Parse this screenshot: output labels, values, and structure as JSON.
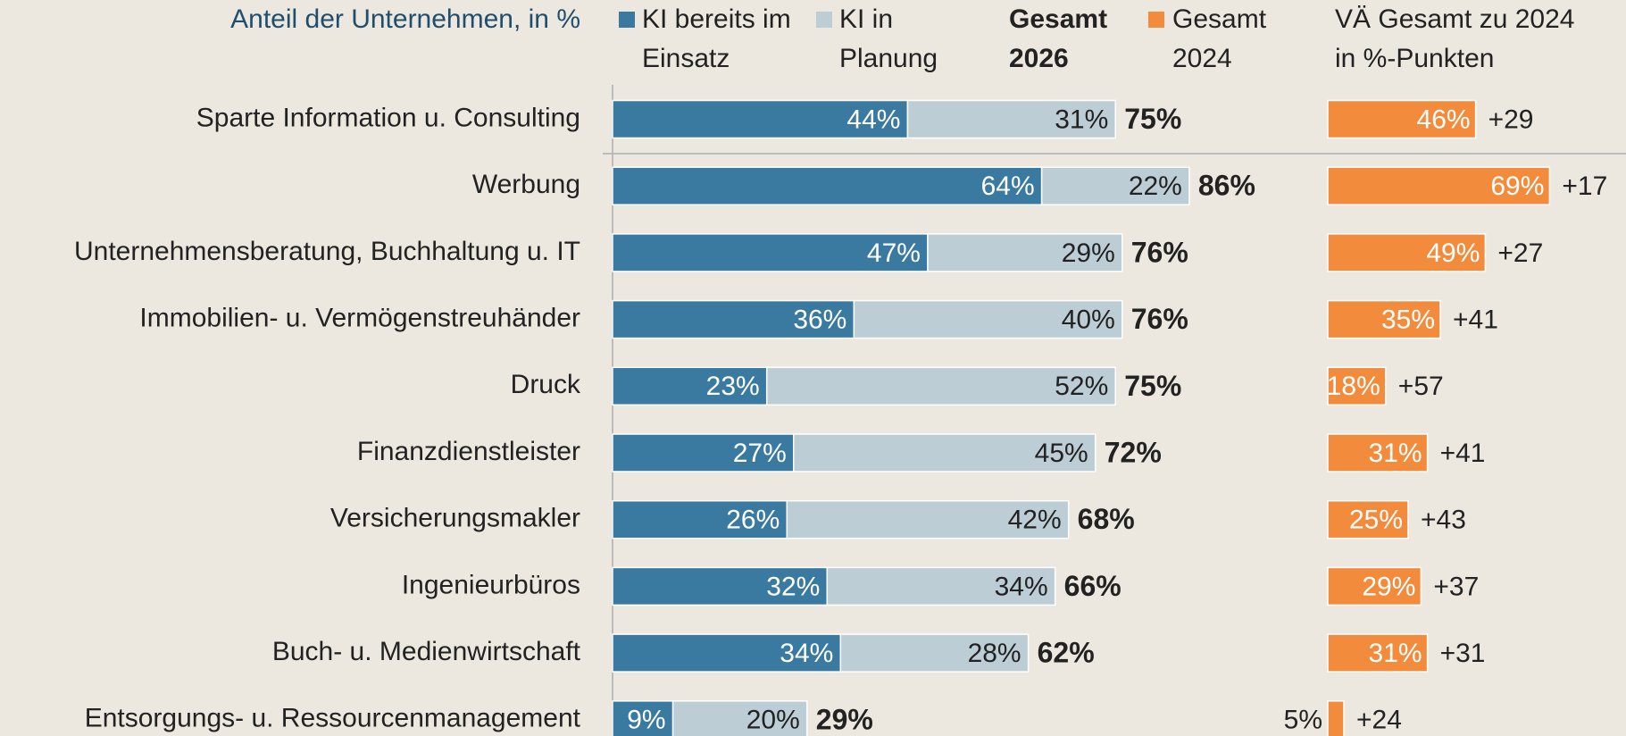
{
  "chart_data": {
    "type": "bar",
    "orientation": "horizontal",
    "stacked": true,
    "title": "Anteil der Unternehmen, in %",
    "categories": [
      "Sparte Information u. Consulting",
      "Werbung",
      "Unternehmensberatung, Buchhaltung u. IT",
      "Immobilien- u. Vermögenstreuhänder",
      "Druck",
      "Finanzdienstleister",
      "Versicherungsmakler",
      "Ingenieurbüros",
      "Buch- u. Medienwirtschaft",
      "Entsorgungs- u. Ressourcenmanagement"
    ],
    "series": [
      {
        "name": "KI bereits im Einsatz",
        "color": "#3b7aa0",
        "values": [
          44,
          64,
          47,
          36,
          23,
          27,
          26,
          32,
          34,
          9
        ],
        "value_labels": [
          "44%",
          "64%",
          "47%",
          "36%",
          "23%",
          "27%",
          "26%",
          "32%",
          "34%",
          "9%"
        ]
      },
      {
        "name": "KI in Planung",
        "color": "#bccdd5",
        "values": [
          31,
          22,
          29,
          40,
          52,
          45,
          42,
          34,
          28,
          20
        ],
        "value_labels": [
          "31%",
          "22%",
          "29%",
          "40%",
          "52%",
          "45%",
          "42%",
          "34%",
          "28%",
          "20%"
        ]
      }
    ],
    "total": {
      "name": "Gesamt 2026",
      "values": [
        75,
        86,
        76,
        76,
        75,
        72,
        68,
        66,
        62,
        29
      ],
      "value_labels": [
        "75%",
        "86%",
        "76%",
        "76%",
        "75%",
        "72%",
        "68%",
        "66%",
        "62%",
        "29%"
      ]
    },
    "previous": {
      "name": "Gesamt 2024",
      "color": "#f28c3c",
      "values": [
        46,
        69,
        49,
        35,
        18,
        31,
        25,
        29,
        31,
        5
      ],
      "value_labels": [
        "46%",
        "69%",
        "49%",
        "35%",
        "18%",
        "31%",
        "25%",
        "29%",
        "31%",
        "5%"
      ]
    },
    "change": {
      "name": "VÄ Gesamt zu 2024 in %-Punkten",
      "values": [
        29,
        17,
        27,
        41,
        57,
        41,
        43,
        37,
        31,
        24
      ],
      "value_labels": [
        "+29",
        "+17",
        "+27",
        "+41",
        "+57",
        "+41",
        "+43",
        "+37",
        "+31",
        "+24"
      ]
    }
  }
}
